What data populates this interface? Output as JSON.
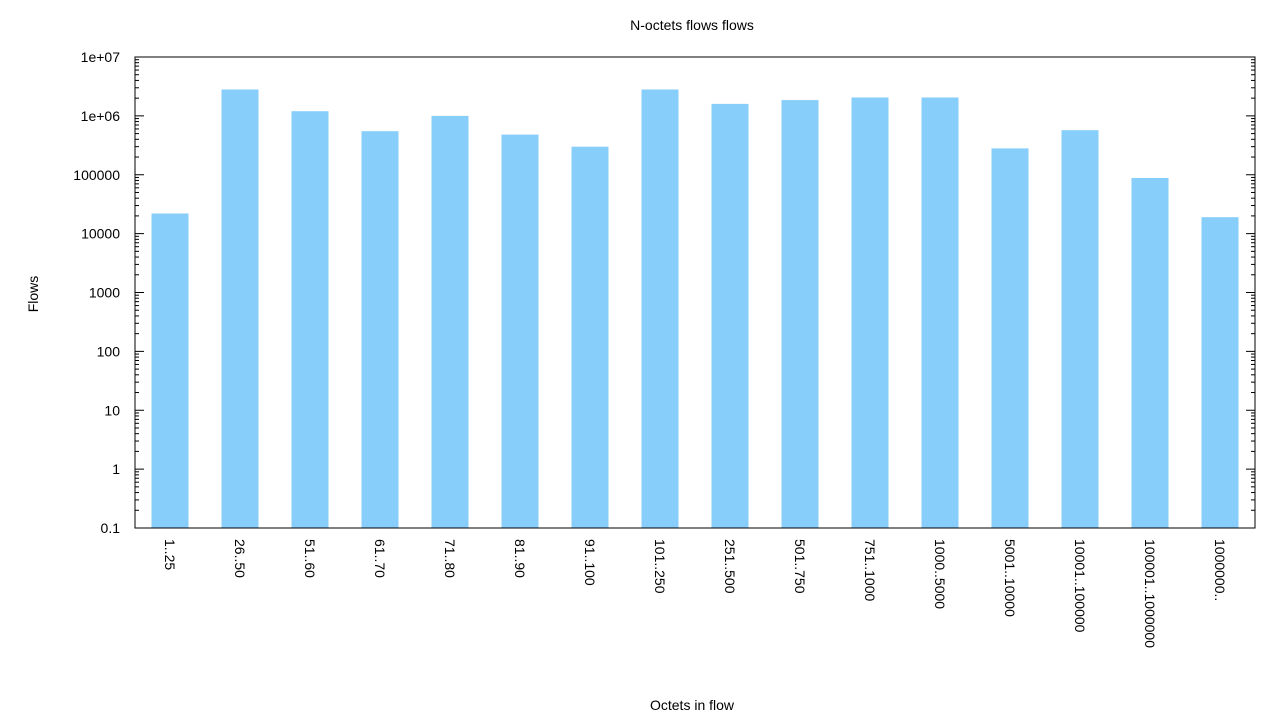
{
  "chart_data": {
    "type": "bar",
    "title": "N-octets flows flows",
    "xlabel": "Octets in flow",
    "ylabel": "Flows",
    "yscale": "log",
    "ylim": [
      0.1,
      10000000
    ],
    "yticks": [
      "0.1",
      "1",
      "10",
      "100",
      "1000",
      "10000",
      "100000",
      "1e+06",
      "1e+07"
    ],
    "categories": [
      "1..25",
      "26..50",
      "51..60",
      "61..70",
      "71..80",
      "81..90",
      "91..100",
      "101..250",
      "251..500",
      "501..750",
      "751..1000",
      "1000..5000",
      "5001..10000",
      "10001..100000",
      "100001..1000000",
      "1000000.."
    ],
    "values": [
      22000,
      2800000,
      1200000,
      550000,
      1000000,
      480000,
      300000,
      2800000,
      1600000,
      1850000,
      2050000,
      2050000,
      280000,
      570000,
      88000,
      19000
    ],
    "bar_color": "#87cefa",
    "grid": false
  }
}
